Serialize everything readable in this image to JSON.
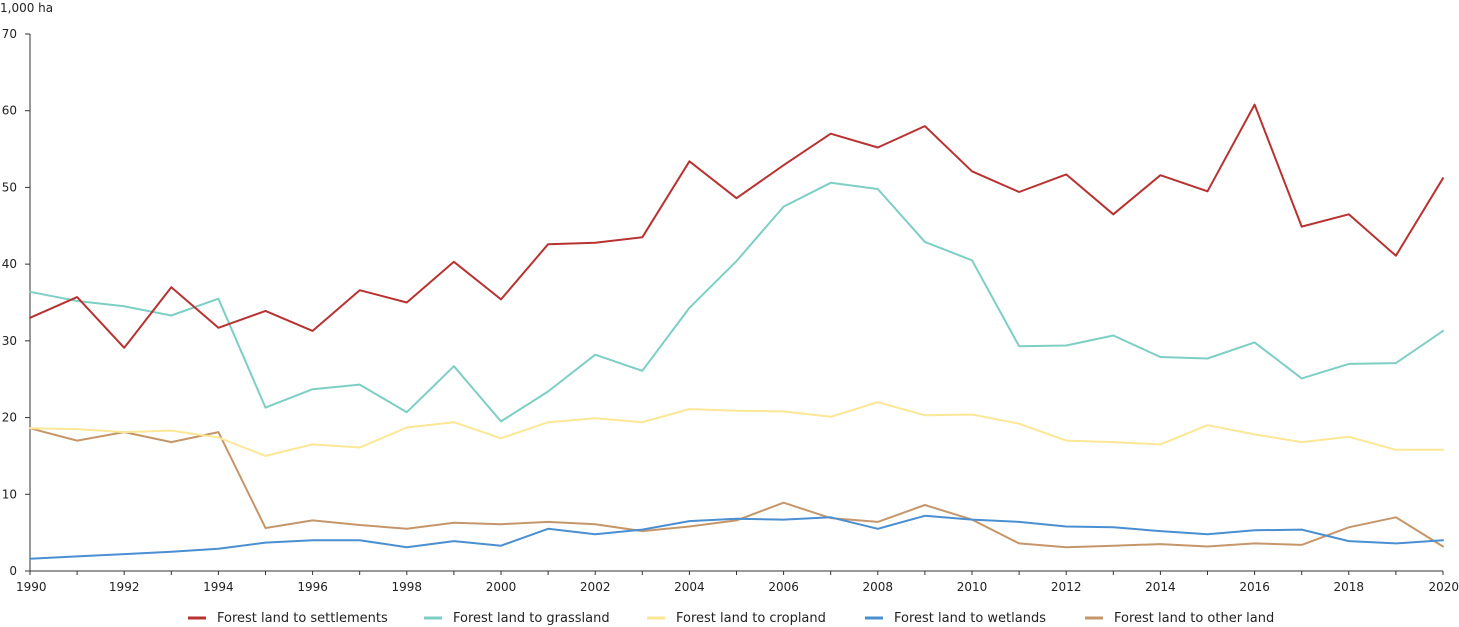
{
  "chart_data": {
    "type": "line",
    "title": "",
    "ylabel": "1,000 ha",
    "xlabel": "",
    "ylim": [
      0,
      70
    ],
    "xlim": [
      1990,
      2020
    ],
    "yticks": [
      0,
      10,
      20,
      30,
      40,
      50,
      60,
      70
    ],
    "xticks": [
      1990,
      1992,
      1994,
      1996,
      1998,
      2000,
      2002,
      2004,
      2006,
      2008,
      2010,
      2012,
      2014,
      2016,
      2018,
      2020
    ],
    "grid": false,
    "legend_position": "bottom",
    "x": [
      1990,
      1991,
      1992,
      1993,
      1994,
      1995,
      1996,
      1997,
      1998,
      1999,
      2000,
      2001,
      2002,
      2003,
      2004,
      2005,
      2006,
      2007,
      2008,
      2009,
      2010,
      2011,
      2012,
      2013,
      2014,
      2015,
      2016,
      2017,
      2018,
      2019,
      2020
    ],
    "series": [
      {
        "name": "Forest land to settlements",
        "color": "#b83232",
        "values": [
          33.0,
          35.7,
          29.1,
          37.0,
          31.7,
          33.9,
          31.3,
          36.6,
          35.0,
          40.3,
          35.4,
          42.6,
          42.8,
          43.5,
          53.4,
          48.6,
          52.9,
          57.0,
          55.2,
          58.0,
          52.1,
          49.4,
          51.7,
          46.5,
          51.6,
          49.5,
          60.8,
          44.9,
          46.5,
          41.1,
          51.2
        ]
      },
      {
        "name": "Forest land to grassland",
        "color": "#7dcfc4",
        "values": [
          36.4,
          35.2,
          34.5,
          33.3,
          35.5,
          21.3,
          23.7,
          24.3,
          20.7,
          26.7,
          19.5,
          23.4,
          28.2,
          26.1,
          34.3,
          40.4,
          47.5,
          50.6,
          49.8,
          42.9,
          40.5,
          29.3,
          29.4,
          30.7,
          27.9,
          27.7,
          29.8,
          25.1,
          27.0,
          27.1,
          31.3
        ]
      },
      {
        "name": "Forest land to cropland",
        "color": "#fbe795",
        "values": [
          18.6,
          18.5,
          18.1,
          18.3,
          17.4,
          15.0,
          16.5,
          16.1,
          18.7,
          19.4,
          17.3,
          19.4,
          19.9,
          19.4,
          21.1,
          20.9,
          20.8,
          20.1,
          22.0,
          20.3,
          20.4,
          19.2,
          17.0,
          16.8,
          16.5,
          19.0,
          17.8,
          16.8,
          17.5,
          15.8,
          15.8
        ]
      },
      {
        "name": "Forest land to wetlands",
        "color": "#4a8fd1",
        "values": [
          1.6,
          1.9,
          2.2,
          2.5,
          2.9,
          3.7,
          4.0,
          4.0,
          3.1,
          3.9,
          3.3,
          5.5,
          4.8,
          5.4,
          6.5,
          6.8,
          6.7,
          7.0,
          5.5,
          7.2,
          6.7,
          6.4,
          5.8,
          5.7,
          5.2,
          4.8,
          5.3,
          5.4,
          3.9,
          3.6,
          4.0
        ]
      },
      {
        "name": "Forest land to other land",
        "color": "#c5966a",
        "values": [
          18.6,
          17.0,
          18.1,
          16.8,
          18.1,
          5.6,
          6.6,
          6.0,
          5.5,
          6.3,
          6.1,
          6.4,
          6.1,
          5.2,
          5.8,
          6.6,
          8.9,
          6.9,
          6.4,
          8.6,
          6.7,
          3.6,
          3.1,
          3.3,
          3.5,
          3.2,
          3.6,
          3.4,
          5.7,
          7.0,
          3.2
        ]
      }
    ]
  }
}
